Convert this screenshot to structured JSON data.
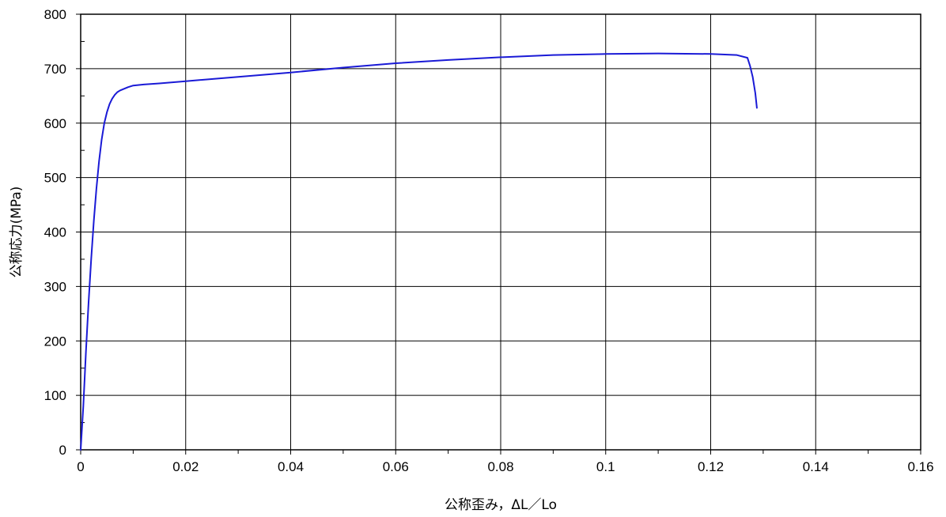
{
  "chart_data": {
    "type": "line",
    "title": "",
    "xlabel": "公称歪み，ΔL／Lo",
    "ylabel": "公称応力(MPa)",
    "xlim": [
      0,
      0.16
    ],
    "ylim": [
      0,
      800
    ],
    "x_ticks": [
      "0",
      "0.02",
      "0.04",
      "0.06",
      "0.08",
      "0.1",
      "0.12",
      "0.14",
      "0.16"
    ],
    "y_ticks": [
      "0",
      "100",
      "200",
      "300",
      "400",
      "500",
      "600",
      "700",
      "800"
    ],
    "grid": true,
    "legend": "none",
    "series": [
      {
        "color": "#1a1ad6",
        "x": [
          0,
          0.0005,
          0.001,
          0.0015,
          0.002,
          0.0025,
          0.003,
          0.0035,
          0.004,
          0.0045,
          0.005,
          0.0055,
          0.006,
          0.0065,
          0.007,
          0.0075,
          0.008,
          0.009,
          0.01,
          0.012,
          0.015,
          0.02,
          0.03,
          0.04,
          0.05,
          0.06,
          0.07,
          0.08,
          0.09,
          0.1,
          0.11,
          0.12,
          0.125,
          0.127,
          0.1275,
          0.128,
          0.1285,
          0.1288
        ],
        "y": [
          0,
          80,
          180,
          270,
          350,
          420,
          480,
          530,
          570,
          600,
          620,
          635,
          645,
          652,
          657,
          660,
          662,
          666,
          669,
          671,
          673,
          677,
          685,
          693,
          702,
          710,
          716,
          721,
          725,
          727,
          728,
          727,
          725,
          720,
          705,
          685,
          655,
          628
        ]
      }
    ]
  }
}
